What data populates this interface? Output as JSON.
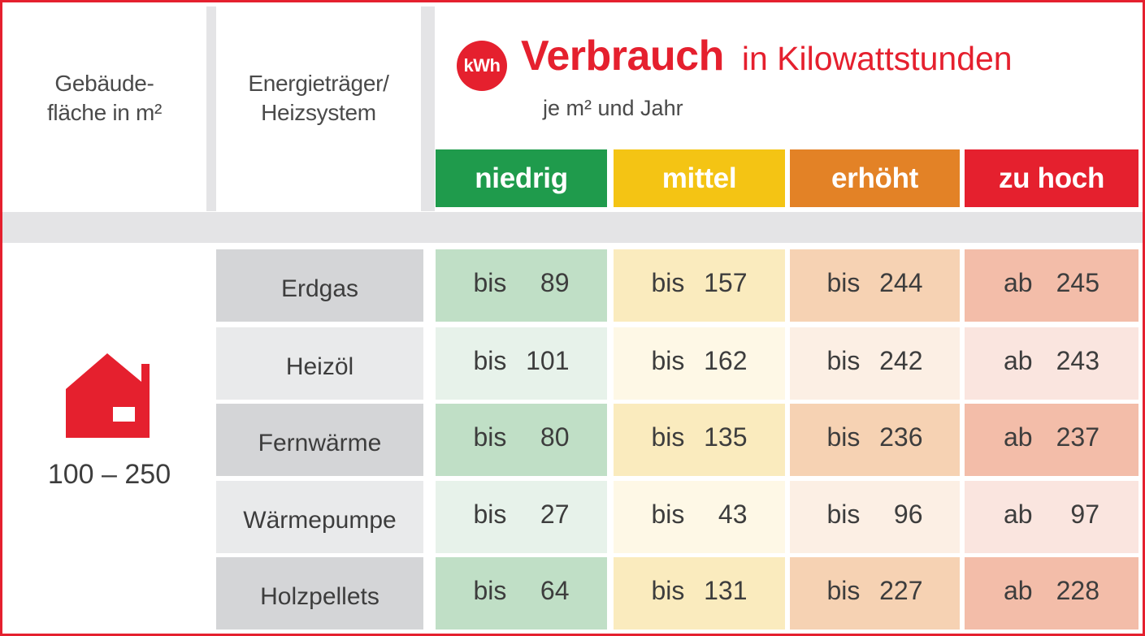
{
  "header": {
    "area_label_line1": "Gebäude-",
    "area_label_line2": "fläche in m²",
    "energy_label_line1": "Energieträger/",
    "energy_label_line2": "Heizsystem",
    "badge": "kWh",
    "title": "Verbrauch",
    "title_suffix": "in Kilowattstunden",
    "unit": "je m² und Jahr"
  },
  "categories": [
    {
      "label": "niedrig",
      "color": "#1f9b4c"
    },
    {
      "label": "mittel",
      "color": "#f4c414"
    },
    {
      "label": "erhöht",
      "color": "#e38226"
    },
    {
      "label": "zu hoch",
      "color": "#e5202e"
    }
  ],
  "area": {
    "range": "100 – 250",
    "icon": "house-icon",
    "icon_color": "#e5202e"
  },
  "rows": [
    {
      "name": "Erdgas",
      "values": [
        {
          "prefix": "bis",
          "value": "89"
        },
        {
          "prefix": "bis",
          "value": "157"
        },
        {
          "prefix": "bis",
          "value": "244"
        },
        {
          "prefix": "ab",
          "value": "245"
        }
      ]
    },
    {
      "name": "Heizöl",
      "values": [
        {
          "prefix": "bis",
          "value": "101"
        },
        {
          "prefix": "bis",
          "value": "162"
        },
        {
          "prefix": "bis",
          "value": "242"
        },
        {
          "prefix": "ab",
          "value": "243"
        }
      ]
    },
    {
      "name": "Fernwärme",
      "values": [
        {
          "prefix": "bis",
          "value": "80"
        },
        {
          "prefix": "bis",
          "value": "135"
        },
        {
          "prefix": "bis",
          "value": "236"
        },
        {
          "prefix": "ab",
          "value": "237"
        }
      ]
    },
    {
      "name": "Wärmepumpe",
      "values": [
        {
          "prefix": "bis",
          "value": "27"
        },
        {
          "prefix": "bis",
          "value": "43"
        },
        {
          "prefix": "bis",
          "value": "96"
        },
        {
          "prefix": "ab",
          "value": "97"
        }
      ]
    },
    {
      "name": "Holzpellets",
      "values": [
        {
          "prefix": "bis",
          "value": "64"
        },
        {
          "prefix": "bis",
          "value": "131"
        },
        {
          "prefix": "bis",
          "value": "227"
        },
        {
          "prefix": "ab",
          "value": "228"
        }
      ]
    }
  ],
  "colors": {
    "dark": [
      "#c0dfc6",
      "#faebbe",
      "#f6d2b3",
      "#f3bda9"
    ],
    "light": [
      "#e7f2ea",
      "#fef8e6",
      "#fcefe4",
      "#fae5df"
    ]
  }
}
